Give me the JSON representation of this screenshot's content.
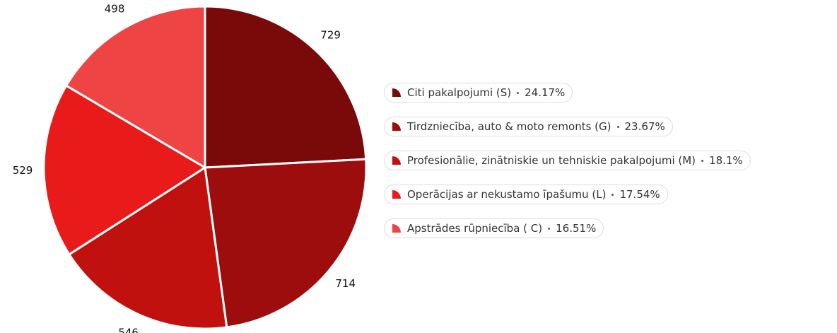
{
  "chart_data": {
    "type": "pie",
    "categories": [
      "Citi pakalpojumi (S)",
      "Tirdzniecība, auto & moto remonts (G)",
      "Profesionālie, zinātniskie un tehniskie pakalpojumi (M)",
      "Operācijas ar nekustamo īpašumu (L)",
      "Apstrādes rūpniecība ( C)"
    ],
    "values": [
      729,
      714,
      546,
      529,
      498
    ],
    "percent_labels": [
      "24.17%",
      "23.67%",
      "18.1%",
      "17.54%",
      "16.51%"
    ],
    "colors": [
      "#7a0a0a",
      "#9e0d0d",
      "#c0110f",
      "#e81a1a",
      "#ef4444"
    ],
    "legend": "right"
  }
}
